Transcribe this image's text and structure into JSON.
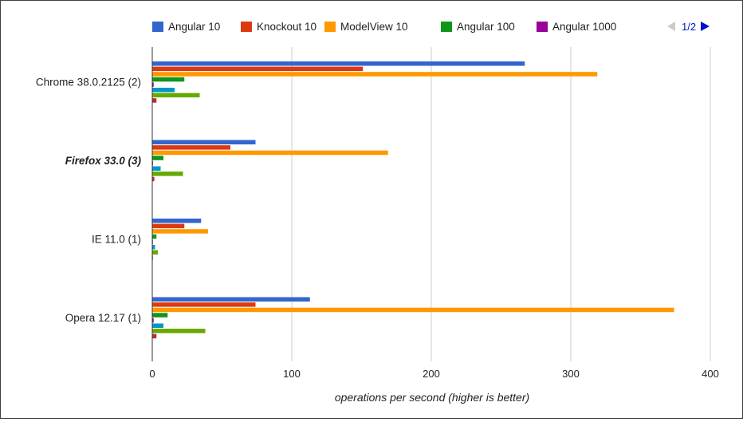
{
  "chart_data": {
    "type": "bar",
    "orientation": "horizontal",
    "categories": [
      "Chrome 38.0.2125 (2)",
      "Firefox 33.0 (3)",
      "IE 11.0 (1)",
      "Opera 12.17 (1)"
    ],
    "highlighted_category": "Firefox 33.0 (3)",
    "series": [
      {
        "name": "Angular 10",
        "color": "#3366cc",
        "values": [
          267,
          74,
          35,
          113
        ]
      },
      {
        "name": "Knockout 10",
        "color": "#dc3912",
        "values": [
          151,
          56,
          23,
          74
        ]
      },
      {
        "name": "ModelView 10",
        "color": "#ff9900",
        "values": [
          319,
          169,
          40,
          374
        ]
      },
      {
        "name": "Angular 100",
        "color": "#109618",
        "values": [
          23,
          8,
          3,
          11
        ]
      },
      {
        "name": "Angular 1000",
        "color": "#990099",
        "values": [
          1,
          0.5,
          0.3,
          1
        ]
      },
      {
        "name": "",
        "color": "#0099c6",
        "values": [
          16,
          6,
          2,
          8
        ]
      },
      {
        "name": "",
        "color": "#66aa00",
        "values": [
          34,
          22,
          4,
          38
        ]
      },
      {
        "name": "",
        "color": "#b82e2e",
        "values": [
          3,
          1.5,
          0.3,
          3
        ]
      }
    ],
    "xlabel": "operations per second (higher is better)",
    "ylabel": "",
    "xlim": [
      0,
      400
    ],
    "xticks": [
      0,
      100,
      200,
      300,
      400
    ],
    "grid": true,
    "legend_position": "top",
    "legend_page": "1/2"
  }
}
